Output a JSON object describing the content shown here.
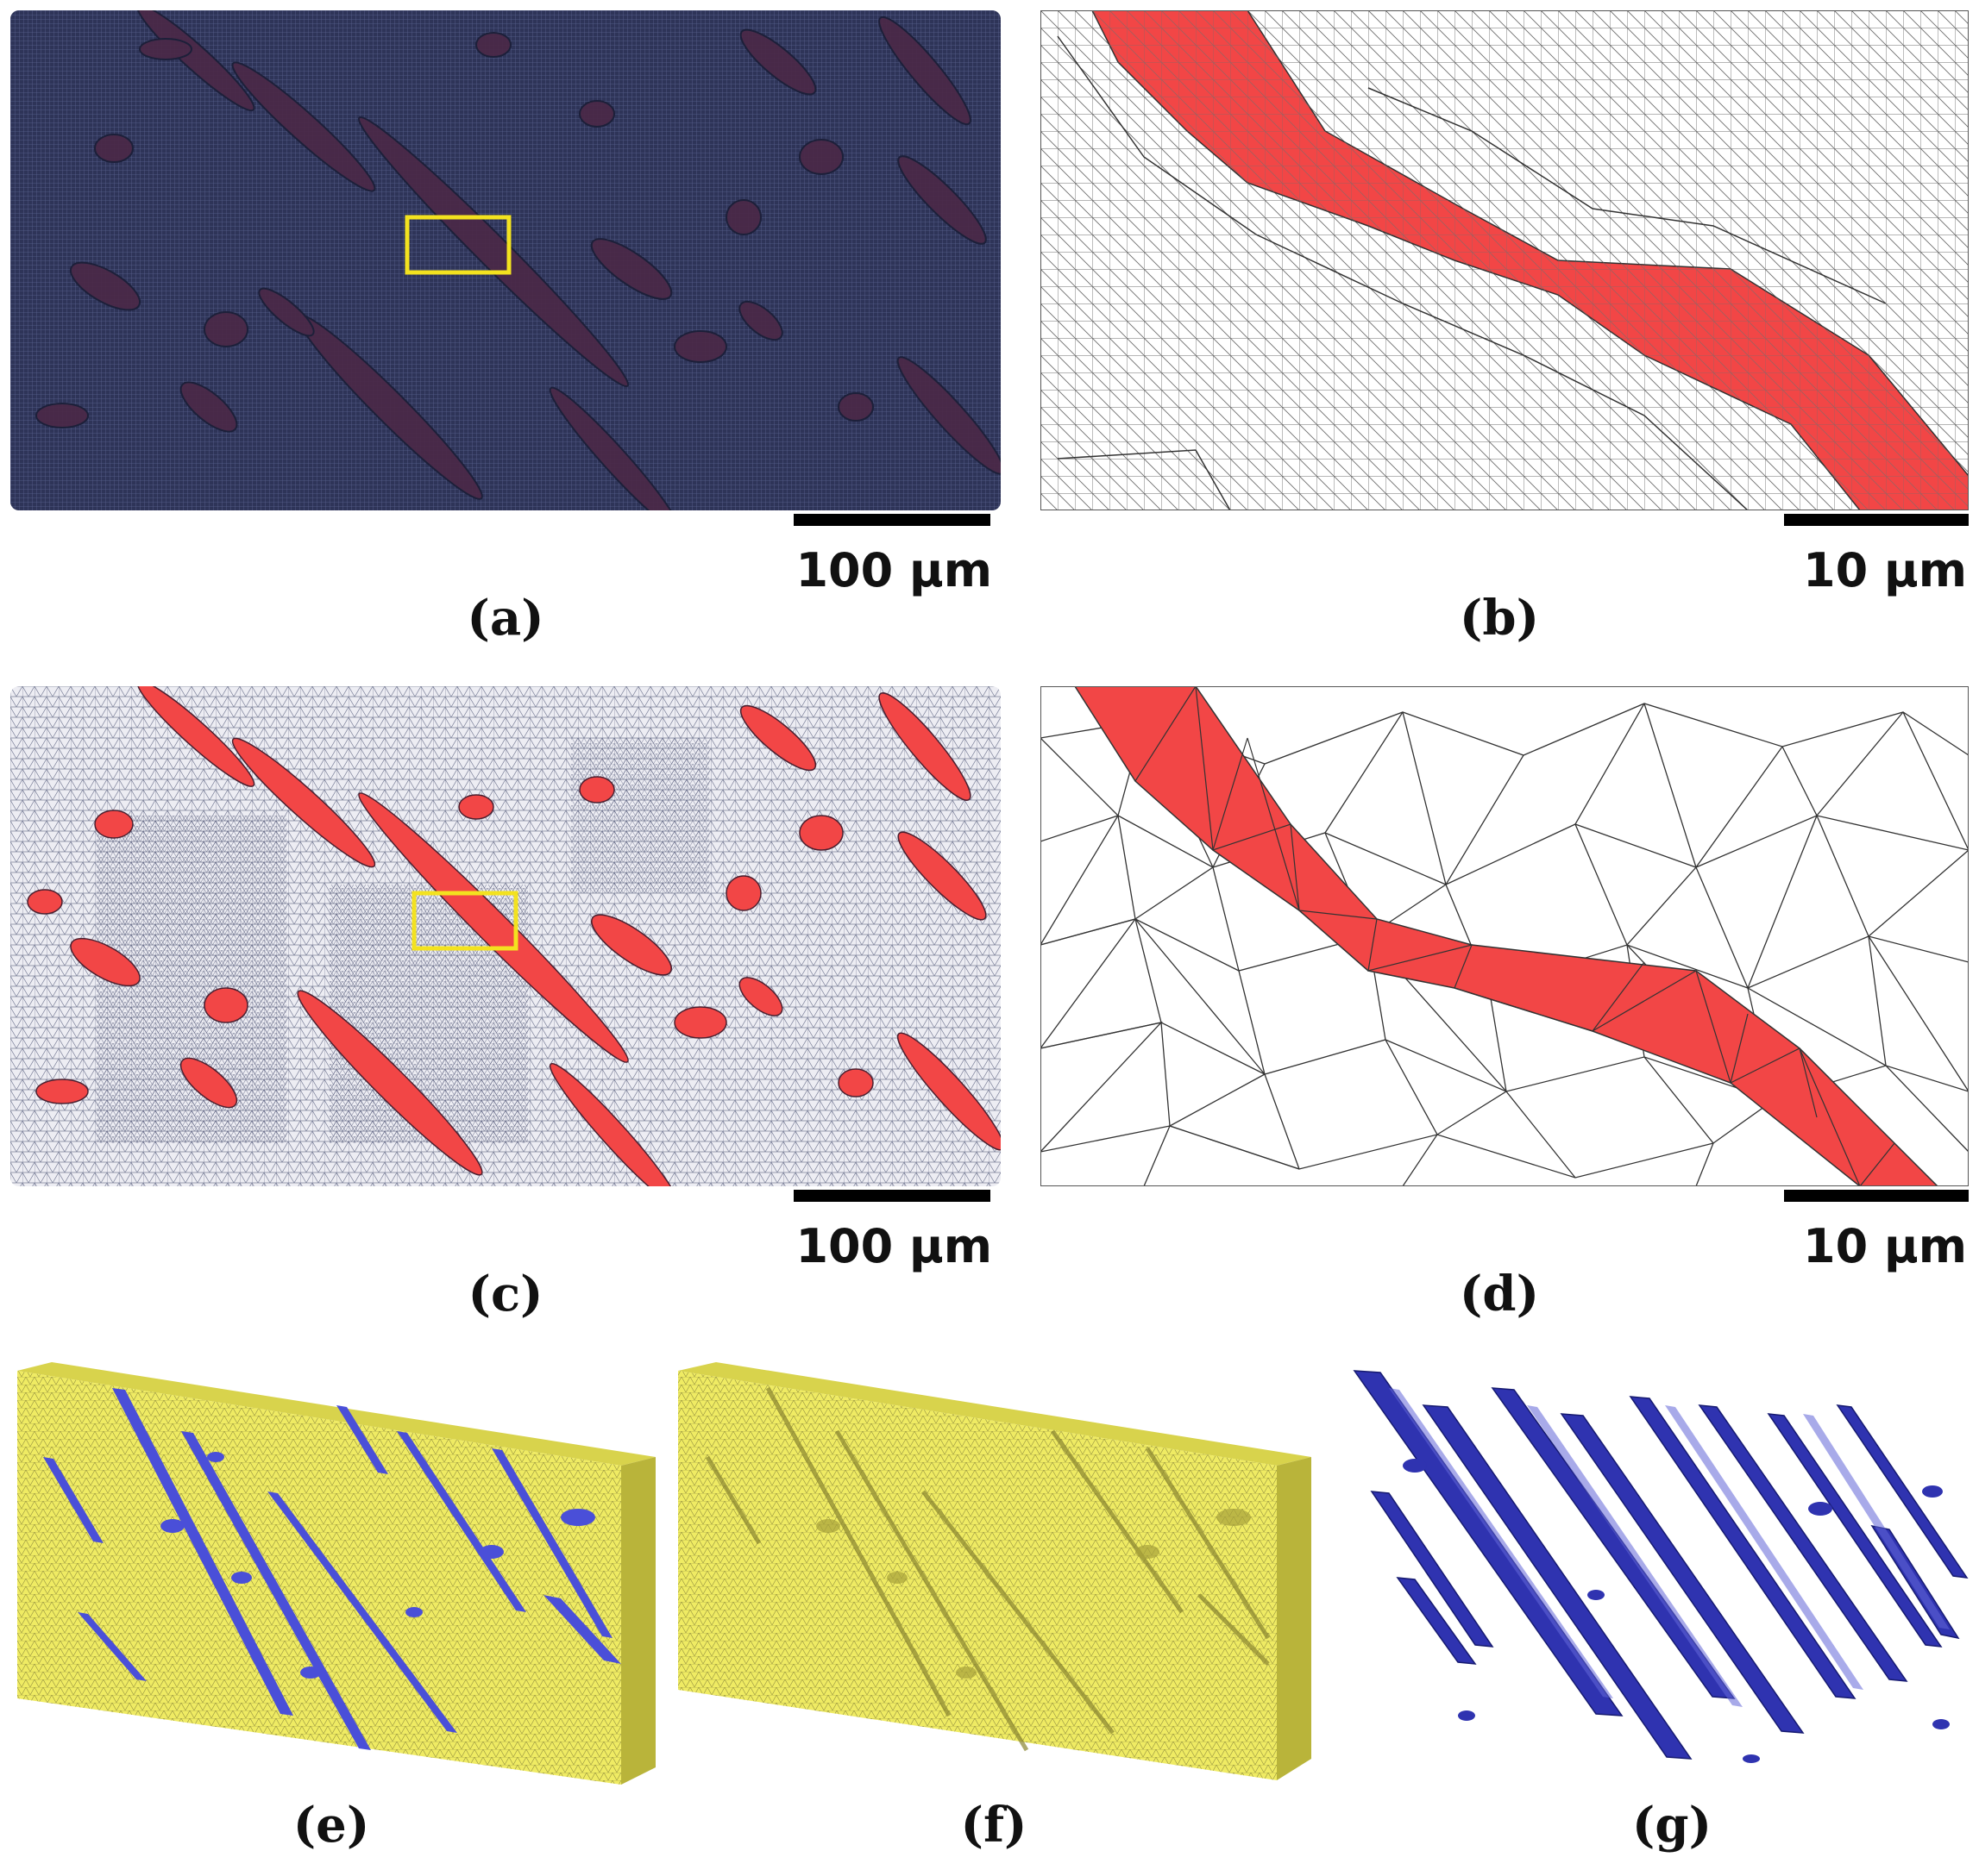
{
  "figure": {
    "panels": [
      {
        "id": "a",
        "label": "(a)",
        "scale_label": "100 µm",
        "view": "voxel mesh of full section"
      },
      {
        "id": "b",
        "label": "(b)",
        "scale_label": "10 µm",
        "view": "zoomed voxel mesh"
      },
      {
        "id": "c",
        "label": "(c)",
        "scale_label": "100 µm",
        "view": "smoothed tetrahedral mesh"
      },
      {
        "id": "d",
        "label": "(d)",
        "scale_label": "10 µm",
        "view": "zoomed smoothed mesh"
      },
      {
        "id": "e",
        "label": "(e)",
        "view": "3D block with inclusions"
      },
      {
        "id": "f",
        "label": "(f)",
        "view": "3D matrix"
      },
      {
        "id": "g",
        "label": "(g)",
        "view": "3D inclusions"
      }
    ],
    "colors": {
      "voxel_background": "#2e3458",
      "voxel_inclusion": "#4a2a48",
      "inclusion_red": "#f24646",
      "highlight_box": "#f3e21f",
      "matrix_yellow": "#efeb63",
      "inclusion_blue": "#3a3fbf"
    }
  }
}
